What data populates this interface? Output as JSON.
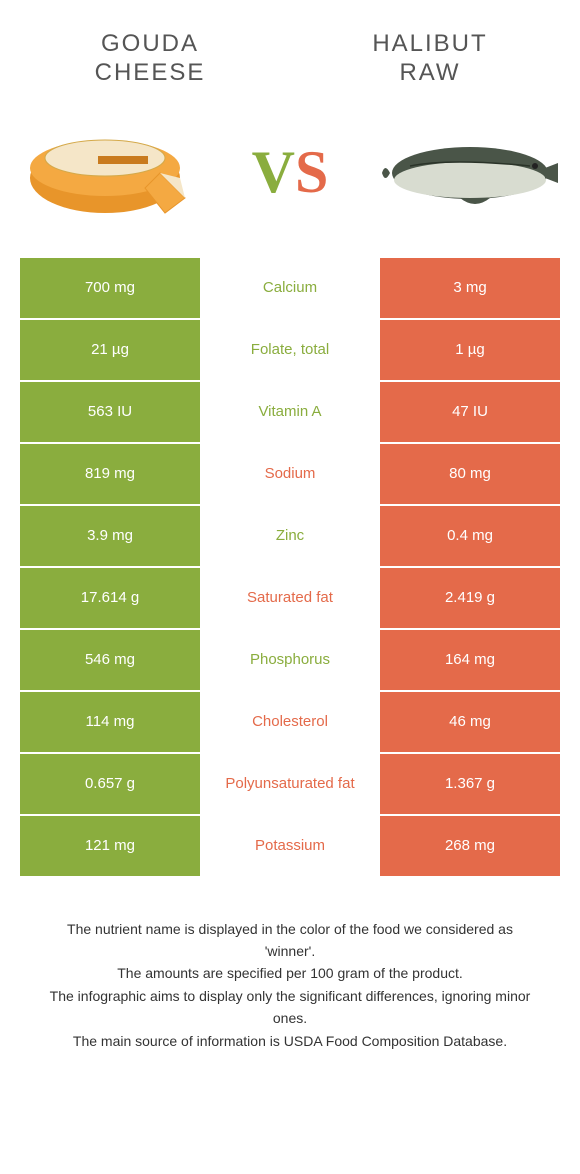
{
  "colors": {
    "green": "#8aad3e",
    "orange": "#e46a4a",
    "title_text": "#555555",
    "nutrient_green": "#8aad3e",
    "nutrient_orange": "#e46a4a"
  },
  "foods": {
    "left": {
      "name_line1": "GOUDA",
      "name_line2": "CHEESE"
    },
    "right": {
      "name_line1": "HALIBUT",
      "name_line2": "RAW"
    }
  },
  "vs": {
    "v": "V",
    "s": "S"
  },
  "rows": [
    {
      "nutrient": "Calcium",
      "left": "700 mg",
      "right": "3 mg",
      "winner": "left"
    },
    {
      "nutrient": "Folate, total",
      "left": "21 µg",
      "right": "1 µg",
      "winner": "left"
    },
    {
      "nutrient": "Vitamin A",
      "left": "563 IU",
      "right": "47 IU",
      "winner": "left"
    },
    {
      "nutrient": "Sodium",
      "left": "819 mg",
      "right": "80 mg",
      "winner": "right"
    },
    {
      "nutrient": "Zinc",
      "left": "3.9 mg",
      "right": "0.4 mg",
      "winner": "left"
    },
    {
      "nutrient": "Saturated fat",
      "left": "17.614 g",
      "right": "2.419 g",
      "winner": "right"
    },
    {
      "nutrient": "Phosphorus",
      "left": "546 mg",
      "right": "164 mg",
      "winner": "left"
    },
    {
      "nutrient": "Cholesterol",
      "left": "114 mg",
      "right": "46 mg",
      "winner": "right"
    },
    {
      "nutrient": "Polyunsaturated fat",
      "left": "0.657 g",
      "right": "1.367 g",
      "winner": "right"
    },
    {
      "nutrient": "Potassium",
      "left": "121 mg",
      "right": "268 mg",
      "winner": "right"
    }
  ],
  "footnotes": [
    "The nutrient name is displayed in the color of the food we considered as 'winner'.",
    "The amounts are specified per 100 gram of the product.",
    "The infographic aims to display only the significant differences, ignoring minor ones.",
    "The main source of information is USDA Food Composition Database."
  ]
}
